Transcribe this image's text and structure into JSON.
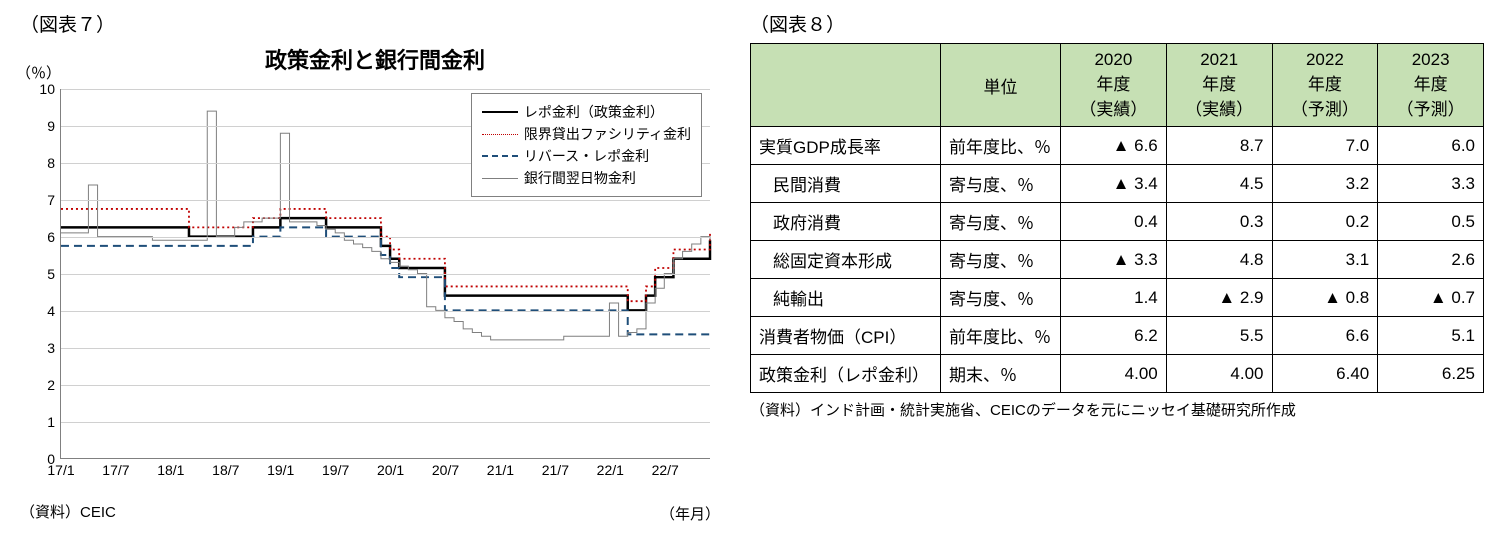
{
  "figure7": {
    "label": "（図表７）",
    "title": "政策金利と銀行間金利",
    "ylabel": "（％）",
    "xlabel": "（年月）",
    "source": "（資料）CEIC",
    "chart": {
      "type": "line",
      "ylim": [
        0,
        10
      ],
      "ytick_step": 1,
      "xticks": [
        "17/1",
        "17/7",
        "18/1",
        "18/7",
        "19/1",
        "19/7",
        "20/1",
        "20/7",
        "21/1",
        "21/7",
        "22/1",
        "22/7"
      ],
      "grid_color": "#d0d0d0",
      "axis_color": "#808080",
      "background_color": "#ffffff",
      "series": [
        {
          "name": "レポ金利（政策金利）",
          "color": "#000000",
          "width": 2.5,
          "dash": "",
          "x": [
            0,
            7,
            14,
            19,
            21,
            24,
            28,
            29,
            35,
            36,
            37,
            39,
            42,
            62,
            63,
            64,
            65,
            67,
            71
          ],
          "y": [
            6.25,
            6.25,
            6.0,
            6.0,
            6.25,
            6.5,
            6.5,
            6.25,
            5.75,
            5.4,
            5.15,
            5.15,
            4.4,
            4.0,
            4.0,
            4.4,
            4.9,
            5.4,
            5.9
          ]
        },
        {
          "name": "限界貸出ファシリティ金利",
          "color": "#c00000",
          "width": 1.8,
          "dash": "2,3",
          "x": [
            0,
            7,
            14,
            19,
            21,
            24,
            28,
            29,
            35,
            36,
            37,
            39,
            42,
            62,
            63,
            64,
            65,
            67,
            71
          ],
          "y": [
            6.75,
            6.75,
            6.25,
            6.25,
            6.5,
            6.75,
            6.75,
            6.5,
            6.0,
            5.65,
            5.4,
            5.4,
            4.65,
            4.25,
            4.25,
            4.65,
            5.15,
            5.65,
            6.15
          ]
        },
        {
          "name": "リバース・レポ金利",
          "color": "#1f4e79",
          "width": 2,
          "dash": "8,5",
          "x": [
            0,
            7,
            14,
            19,
            21,
            24,
            28,
            29,
            35,
            36,
            37,
            39,
            42,
            62,
            71
          ],
          "y": [
            5.75,
            5.75,
            5.75,
            5.75,
            6.0,
            6.25,
            6.25,
            6.0,
            5.5,
            5.15,
            4.9,
            4.9,
            4.0,
            3.35,
            3.35
          ]
        },
        {
          "name": "銀行間翌日物金利",
          "color": "#7f7f7f",
          "width": 1,
          "dash": "",
          "x": [
            0,
            2,
            3,
            4,
            5,
            6,
            7,
            8,
            9,
            10,
            11,
            12,
            13,
            14,
            15,
            16,
            17,
            18,
            19,
            20,
            21,
            22,
            23,
            24,
            25,
            26,
            27,
            28,
            29,
            30,
            31,
            32,
            33,
            34,
            35,
            36,
            37,
            38,
            39,
            40,
            41,
            42,
            43,
            44,
            45,
            46,
            47,
            48,
            49,
            50,
            51,
            52,
            53,
            54,
            55,
            56,
            57,
            58,
            59,
            60,
            61,
            62,
            63,
            64,
            65,
            66,
            67,
            68,
            69,
            70,
            71
          ],
          "y": [
            6.1,
            6.1,
            7.4,
            6.0,
            6.0,
            6.0,
            6.0,
            6.0,
            6.0,
            5.9,
            5.9,
            5.9,
            5.9,
            5.9,
            5.9,
            9.4,
            6.0,
            6.0,
            6.25,
            6.4,
            6.4,
            6.5,
            6.5,
            8.8,
            6.4,
            6.4,
            6.4,
            6.3,
            6.2,
            6.1,
            5.9,
            5.8,
            5.7,
            5.6,
            5.4,
            5.3,
            5.2,
            5.1,
            5.0,
            4.1,
            4.0,
            3.8,
            3.7,
            3.5,
            3.4,
            3.3,
            3.2,
            3.2,
            3.2,
            3.2,
            3.2,
            3.2,
            3.2,
            3.2,
            3.3,
            3.3,
            3.3,
            3.3,
            3.3,
            4.2,
            3.3,
            3.4,
            3.5,
            4.2,
            4.6,
            5.0,
            5.4,
            5.6,
            5.8,
            6.0,
            5.9
          ]
        }
      ]
    }
  },
  "figure8": {
    "label": "（図表８）",
    "source": "（資料）インド計画・統計実施省、CEICのデータを元にニッセイ基礎研究所作成",
    "table": {
      "header_bg": "#c6e0b4",
      "border_color": "#000000",
      "columns": [
        "",
        "単位",
        "2020\n年度\n（実績）",
        "2021\n年度\n（実績）",
        "2022\n年度\n（予測）",
        "2023\n年度\n（予測）"
      ],
      "rows": [
        {
          "label": "実質GDP成長率",
          "indent": false,
          "unit": "前年度比、％",
          "vals": [
            "▲ 6.6",
            "8.7",
            "7.0",
            "6.0"
          ]
        },
        {
          "label": "民間消費",
          "indent": true,
          "unit": "寄与度、％",
          "vals": [
            "▲ 3.4",
            "4.5",
            "3.2",
            "3.3"
          ]
        },
        {
          "label": "政府消費",
          "indent": true,
          "unit": "寄与度、％",
          "vals": [
            "0.4",
            "0.3",
            "0.2",
            "0.5"
          ]
        },
        {
          "label": "総固定資本形成",
          "indent": true,
          "unit": "寄与度、％",
          "vals": [
            "▲ 3.3",
            "4.8",
            "3.1",
            "2.6"
          ]
        },
        {
          "label": "純輸出",
          "indent": true,
          "unit": "寄与度、％",
          "vals": [
            "1.4",
            "▲ 2.9",
            "▲ 0.8",
            "▲ 0.7"
          ]
        },
        {
          "label": "消費者物価（CPI）",
          "indent": false,
          "unit": "前年度比、％",
          "vals": [
            "6.2",
            "5.5",
            "6.6",
            "5.1"
          ]
        },
        {
          "label": "政策金利（レポ金利）",
          "indent": false,
          "unit": "期末、％",
          "vals": [
            "4.00",
            "4.00",
            "6.40",
            "6.25"
          ]
        }
      ]
    }
  }
}
